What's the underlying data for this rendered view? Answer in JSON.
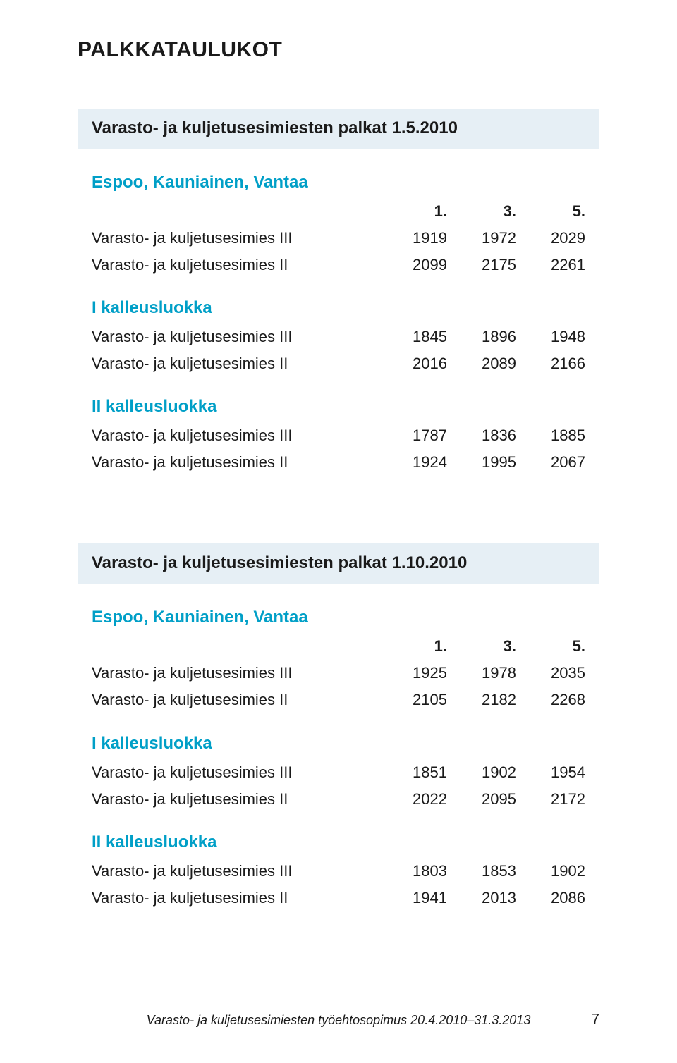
{
  "page_title": "PALKKATAULUKOT",
  "col_headers": [
    "1.",
    "3.",
    "5."
  ],
  "row_label_iii": "Varasto- ja kuljetusesimies III",
  "row_label_ii": "Varasto- ja kuljetusesimies II",
  "group1_label": "I kalleusluokka",
  "group2_label": "II kalleusluokka",
  "accent_color": "#009fc7",
  "band_bg": "#e6eff5",
  "text_color": "#1a1a1a",
  "sec1": {
    "title": "Varasto- ja kuljetusesimiesten palkat 1.5.2010",
    "sublabel": "Espoo, Kauniainen, Vantaa",
    "top": {
      "iii": [
        1919,
        1972,
        2029
      ],
      "ii": [
        2099,
        2175,
        2261
      ]
    },
    "g1": {
      "iii": [
        1845,
        1896,
        1948
      ],
      "ii": [
        2016,
        2089,
        2166
      ]
    },
    "g2": {
      "iii": [
        1787,
        1836,
        1885
      ],
      "ii": [
        1924,
        1995,
        2067
      ]
    }
  },
  "sec2": {
    "title": "Varasto- ja kuljetusesimiesten palkat 1.10.2010",
    "sublabel": "Espoo, Kauniainen, Vantaa",
    "top": {
      "iii": [
        1925,
        1978,
        2035
      ],
      "ii": [
        2105,
        2182,
        2268
      ]
    },
    "g1": {
      "iii": [
        1851,
        1902,
        1954
      ],
      "ii": [
        2022,
        2095,
        2172
      ]
    },
    "g2": {
      "iii": [
        1803,
        1853,
        1902
      ],
      "ii": [
        1941,
        2013,
        2086
      ]
    }
  },
  "footer_text": "Varasto- ja kuljetusesimiesten työehtosopimus 20.4.2010–31.3.2013",
  "page_number": "7"
}
